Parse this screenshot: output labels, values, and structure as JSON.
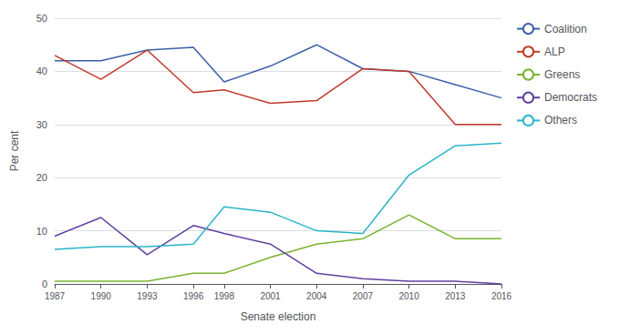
{
  "chart_data": {
    "type": "line",
    "x": [
      1987,
      1990,
      1993,
      1996,
      1998,
      2001,
      2004,
      2007,
      2010,
      2013,
      2016
    ],
    "series": [
      {
        "name": "Coalition",
        "color": "#3a5fa8",
        "values": [
          42,
          42,
          44,
          44.5,
          38,
          41,
          45,
          40.5,
          40,
          37.5,
          35
        ]
      },
      {
        "name": "ALP",
        "color": "#c0392b",
        "values": [
          43,
          38.5,
          44,
          36,
          36.5,
          34,
          34.5,
          40.5,
          40,
          30,
          30
        ]
      },
      {
        "name": "Greens",
        "color": "#7ab32e",
        "values": [
          0.5,
          0.5,
          0.5,
          2,
          2,
          5,
          7.5,
          8.5,
          13,
          8.5,
          8.5
        ]
      },
      {
        "name": "Democrats",
        "color": "#6040a0",
        "values": [
          9,
          12.5,
          5.5,
          11,
          9.5,
          7.5,
          2,
          1,
          0.5,
          0.5,
          0
        ]
      },
      {
        "name": "Others",
        "color": "#28b5c8",
        "values": [
          6.5,
          7,
          7,
          7.5,
          14.5,
          13.5,
          10,
          9.5,
          20.5,
          26,
          26.5
        ]
      }
    ],
    "xlabel": "Senate election",
    "ylabel": "Per cent",
    "xlim": [
      1987,
      2016
    ],
    "xticks": [
      1987,
      1990,
      1993,
      1996,
      1998,
      2001,
      2004,
      2007,
      2010,
      2013,
      2016
    ],
    "ylim": [
      0,
      50
    ],
    "yticks": [
      0,
      10,
      20,
      30,
      40,
      50
    ],
    "grid": true,
    "legend": "right"
  }
}
